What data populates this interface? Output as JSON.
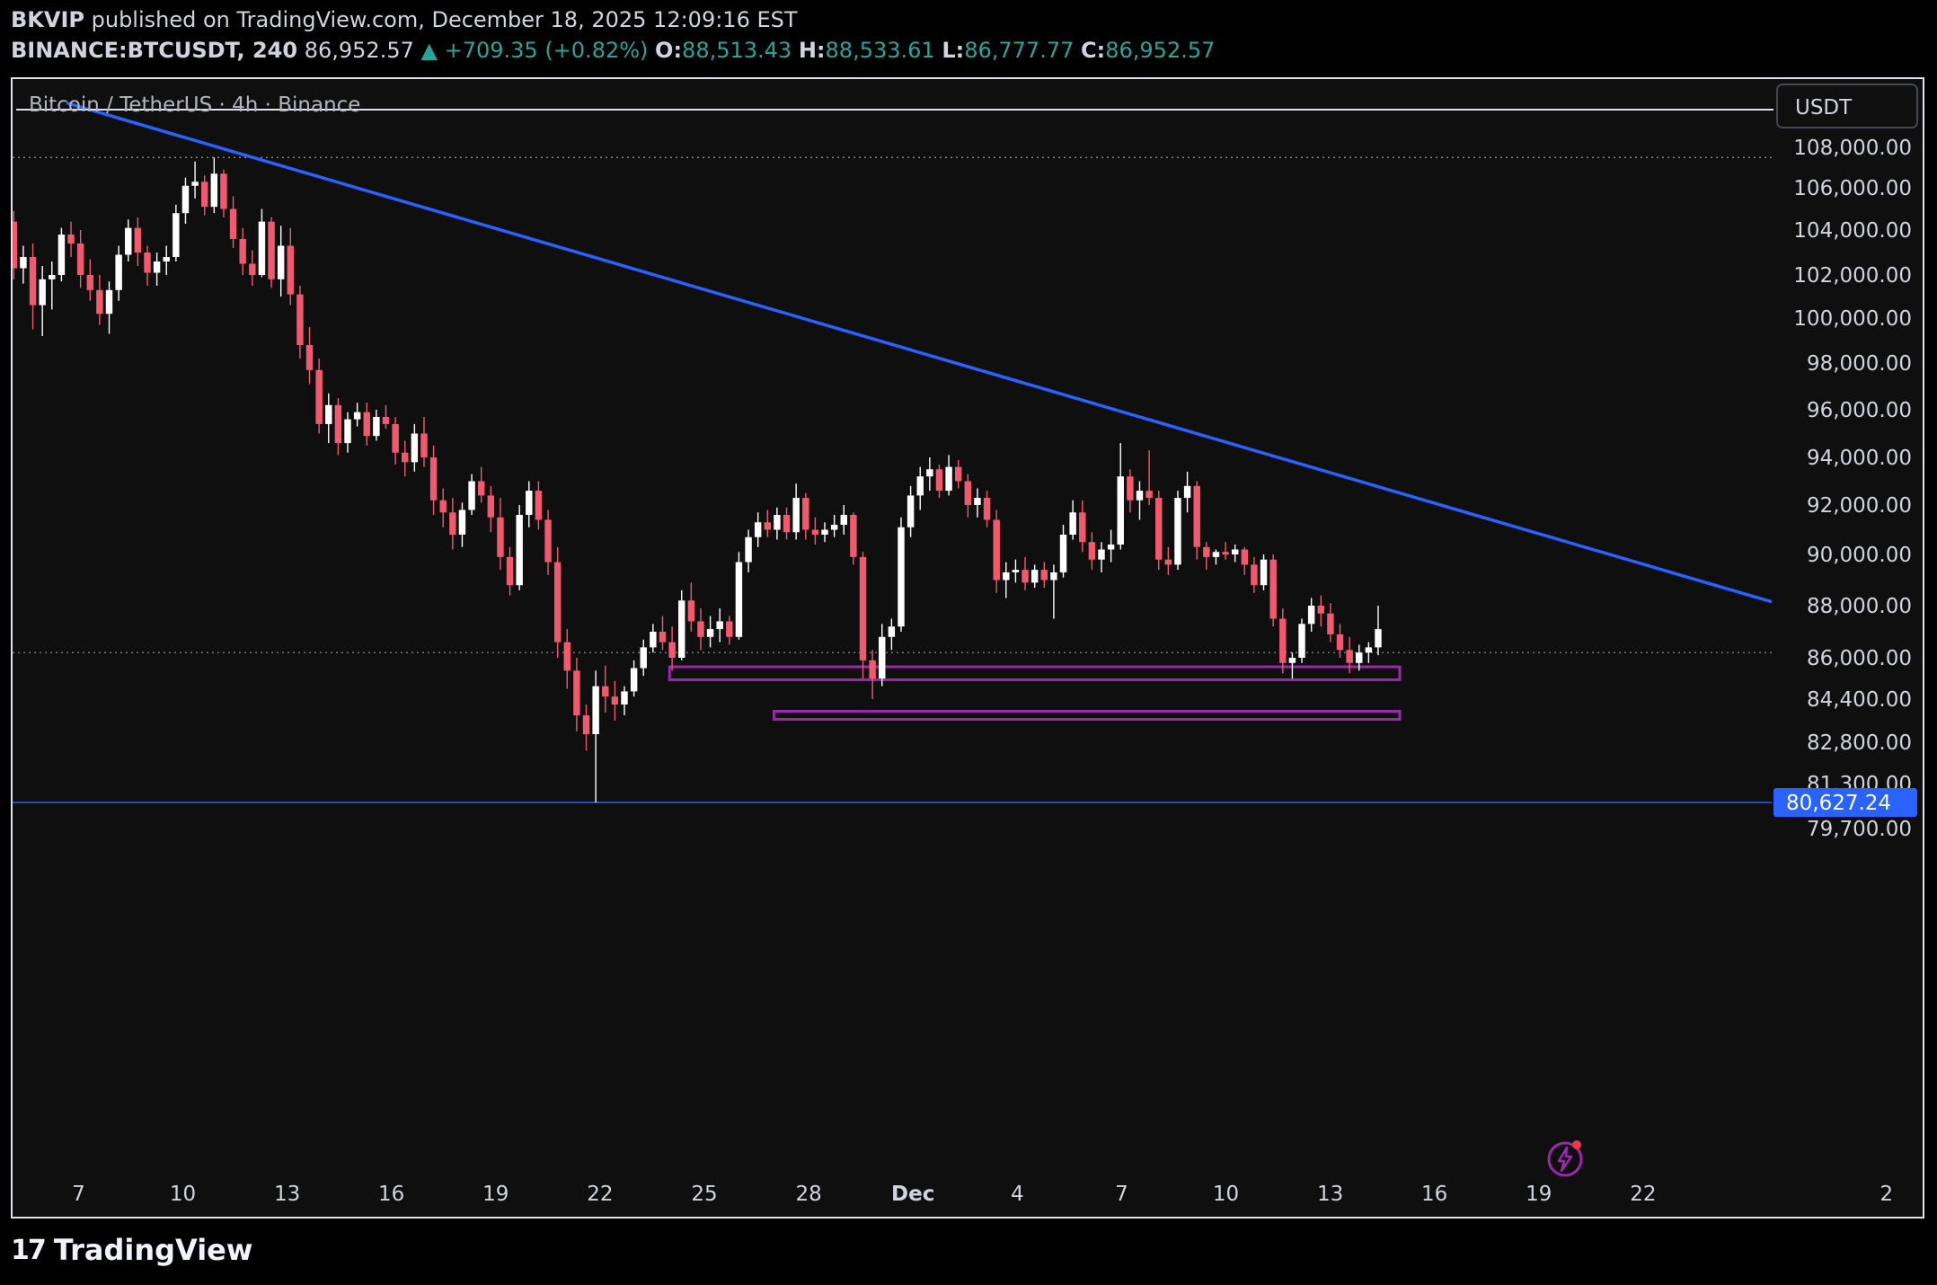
{
  "header": {
    "publisher": "BKVIP",
    "published_text": "published on TradingView.com, December 18, 2025 12:09:16 EST",
    "symbol": "BINANCE:BTCUSDT, 240",
    "last": "86,952.57",
    "change": "▲ +709.35 (+0.82%)",
    "o_label": "O:",
    "o_value": "88,513.43",
    "h_label": "H:",
    "h_value": "88,533.61",
    "l_label": "L:",
    "l_value": "86,777.77",
    "c_label": "C:",
    "c_value": "86,952.57"
  },
  "footer": {
    "brand": "TradingView"
  },
  "colors": {
    "bull": "#ffffff",
    "bear": "#f05a6e",
    "trendline": "#2962ff",
    "zone": "#9c27b0",
    "price_tag": "#2962ff",
    "up_text": "#26a69a"
  },
  "chart_data": {
    "type": "candlestick",
    "title": "Bitcoin / TetherUS · 4h · Binance",
    "currency": "USDT",
    "y_ticks": [
      "108,000.00",
      "106,000.00",
      "104,000.00",
      "102,000.00",
      "100,000.00",
      "98,000.00",
      "96,000.00",
      "94,000.00",
      "92,000.00",
      "90,000.00",
      "88,000.00",
      "86,000.00",
      "84,400.00",
      "82,800.00",
      "81,300.00",
      "79,700.00"
    ],
    "x_ticks": [
      "7",
      "10",
      "13",
      "16",
      "19",
      "22",
      "25",
      "28",
      "Dec",
      "4",
      "7",
      "10",
      "13",
      "16",
      "19",
      "22",
      "2"
    ],
    "x_range": [
      "Nov 5, 2025",
      "Jan 2, 2026"
    ],
    "price_tag": "80,627.24",
    "horizontal_lines": [
      {
        "price": 107500,
        "style": "dotted"
      },
      {
        "price": 86200,
        "style": "dotted"
      },
      {
        "price": 80627.24,
        "style": "solid",
        "color": "#2962ff"
      }
    ],
    "trendline": {
      "from": {
        "date": "Nov 5",
        "price": 110200
      },
      "to": {
        "date": "Jan 2",
        "price": 88150
      }
    },
    "zones": [
      {
        "from": "Nov 24",
        "to": "Dec 19",
        "low": 85150,
        "high": 85650
      },
      {
        "from": "Dec 1",
        "to": "Dec 19",
        "low": 83650,
        "high": 83950
      }
    ],
    "candles": [
      [
        104400,
        104900,
        101800,
        102300
      ],
      [
        102300,
        103300,
        101600,
        102800
      ],
      [
        102800,
        103400,
        99500,
        100600
      ],
      [
        100600,
        102400,
        99200,
        101800
      ],
      [
        101800,
        102600,
        100400,
        102000
      ],
      [
        102000,
        104100,
        101700,
        103800
      ],
      [
        103800,
        104400,
        102800,
        103400
      ],
      [
        103400,
        104000,
        101400,
        102000
      ],
      [
        102000,
        102700,
        100800,
        101300
      ],
      [
        101300,
        102000,
        99700,
        100200
      ],
      [
        100200,
        101700,
        99300,
        101300
      ],
      [
        101300,
        103300,
        100800,
        102900
      ],
      [
        102900,
        104500,
        102600,
        104100
      ],
      [
        104100,
        104600,
        102400,
        103000
      ],
      [
        103000,
        103300,
        101500,
        102100
      ],
      [
        102100,
        103000,
        101500,
        102600
      ],
      [
        102600,
        103300,
        102000,
        102800
      ],
      [
        102800,
        105200,
        102600,
        104800
      ],
      [
        104800,
        106500,
        104300,
        106100
      ],
      [
        106100,
        107300,
        105500,
        106300
      ],
      [
        106300,
        106600,
        104700,
        105100
      ],
      [
        105100,
        107500,
        104800,
        106700
      ],
      [
        106700,
        106900,
        104600,
        105000
      ],
      [
        105000,
        105600,
        103200,
        103600
      ],
      [
        103600,
        104100,
        102000,
        102500
      ],
      [
        102500,
        103100,
        101500,
        102000
      ],
      [
        102000,
        105000,
        101900,
        104400
      ],
      [
        104400,
        104600,
        101400,
        101800
      ],
      [
        101800,
        104200,
        101000,
        103300
      ],
      [
        103300,
        104100,
        100600,
        101100
      ],
      [
        101100,
        101500,
        98200,
        98800
      ],
      [
        98800,
        99600,
        97100,
        97700
      ],
      [
        97700,
        98200,
        95000,
        95400
      ],
      [
        95400,
        96700,
        94600,
        96200
      ],
      [
        96200,
        96500,
        94100,
        94600
      ],
      [
        94600,
        95900,
        94200,
        95600
      ],
      [
        95600,
        96300,
        95300,
        95900
      ],
      [
        95900,
        96300,
        94500,
        94900
      ],
      [
        94900,
        96000,
        94700,
        95700
      ],
      [
        95700,
        96200,
        95200,
        95400
      ],
      [
        95400,
        95700,
        93700,
        94200
      ],
      [
        94200,
        94700,
        93200,
        93800
      ],
      [
        93800,
        95400,
        93400,
        95000
      ],
      [
        95000,
        95700,
        93600,
        94000
      ],
      [
        94000,
        94500,
        91600,
        92200
      ],
      [
        92200,
        92700,
        91100,
        91700
      ],
      [
        91700,
        92300,
        90200,
        90800
      ],
      [
        90800,
        92100,
        90300,
        91800
      ],
      [
        91800,
        93300,
        91600,
        93000
      ],
      [
        93000,
        93600,
        92100,
        92400
      ],
      [
        92400,
        92800,
        90900,
        91500
      ],
      [
        91500,
        92300,
        89400,
        89900
      ],
      [
        89900,
        90300,
        88400,
        88800
      ],
      [
        88800,
        92000,
        88600,
        91600
      ],
      [
        91600,
        93000,
        91100,
        92600
      ],
      [
        92600,
        93000,
        91000,
        91400
      ],
      [
        91400,
        91800,
        89200,
        89700
      ],
      [
        89700,
        90300,
        86000,
        86600
      ],
      [
        86600,
        87100,
        84800,
        85500
      ],
      [
        85500,
        86000,
        83200,
        83800
      ],
      [
        83800,
        84200,
        82500,
        83100
      ],
      [
        83100,
        85500,
        80627,
        84900
      ],
      [
        84900,
        85700,
        83900,
        84500
      ],
      [
        84500,
        85100,
        83600,
        84200
      ],
      [
        84200,
        84900,
        83800,
        84700
      ],
      [
        84700,
        85900,
        84500,
        85600
      ],
      [
        85600,
        86700,
        85300,
        86400
      ],
      [
        86400,
        87300,
        86200,
        87000
      ],
      [
        87000,
        87600,
        86300,
        86600
      ],
      [
        86600,
        87200,
        85500,
        86000
      ],
      [
        86000,
        88600,
        85900,
        88200
      ],
      [
        88200,
        88900,
        87000,
        87400
      ],
      [
        87400,
        87900,
        86300,
        86800
      ],
      [
        86800,
        87600,
        86400,
        87100
      ],
      [
        87100,
        87900,
        86600,
        87400
      ],
      [
        87400,
        87600,
        86500,
        86800
      ],
      [
        86800,
        90100,
        86700,
        89700
      ],
      [
        89700,
        91000,
        89300,
        90700
      ],
      [
        90700,
        91700,
        90300,
        91300
      ],
      [
        91300,
        91800,
        90700,
        91000
      ],
      [
        91000,
        91900,
        90600,
        91600
      ],
      [
        91600,
        91900,
        90600,
        90900
      ],
      [
        90900,
        92900,
        90600,
        92300
      ],
      [
        92300,
        92500,
        90600,
        91000
      ],
      [
        91000,
        91500,
        90400,
        90800
      ],
      [
        90800,
        91300,
        90500,
        91000
      ],
      [
        91000,
        91600,
        90700,
        91200
      ],
      [
        91200,
        92000,
        90800,
        91600
      ],
      [
        91600,
        91700,
        89600,
        89900
      ],
      [
        89900,
        90100,
        85200,
        85900
      ],
      [
        85900,
        86300,
        84400,
        85200
      ],
      [
        85200,
        87300,
        84900,
        86800
      ],
      [
        86800,
        87500,
        86300,
        87200
      ],
      [
        87200,
        91500,
        87000,
        91100
      ],
      [
        91100,
        92800,
        90700,
        92400
      ],
      [
        92400,
        93600,
        91800,
        93200
      ],
      [
        93200,
        94000,
        92600,
        93500
      ],
      [
        93500,
        93700,
        92300,
        92600
      ],
      [
        92600,
        94100,
        92400,
        93600
      ],
      [
        93600,
        93900,
        92700,
        93000
      ],
      [
        93000,
        93300,
        91500,
        92000
      ],
      [
        92000,
        92700,
        91500,
        92300
      ],
      [
        92300,
        92600,
        91100,
        91400
      ],
      [
        91400,
        91800,
        88500,
        89000
      ],
      [
        89000,
        89700,
        88300,
        89300
      ],
      [
        89300,
        89800,
        88900,
        89400
      ],
      [
        89400,
        89900,
        88600,
        88900
      ],
      [
        88900,
        89600,
        88700,
        89400
      ],
      [
        89400,
        89700,
        88700,
        89000
      ],
      [
        89000,
        89600,
        87500,
        89300
      ],
      [
        89300,
        91200,
        89100,
        90800
      ],
      [
        90800,
        92200,
        90600,
        91700
      ],
      [
        91700,
        92200,
        90100,
        90500
      ],
      [
        90500,
        90900,
        89400,
        89800
      ],
      [
        89800,
        90500,
        89300,
        90200
      ],
      [
        90200,
        91000,
        89700,
        90400
      ],
      [
        90400,
        94600,
        90200,
        93200
      ],
      [
        93200,
        93500,
        91700,
        92200
      ],
      [
        92200,
        93000,
        91400,
        92600
      ],
      [
        92600,
        94300,
        92000,
        92300
      ],
      [
        92300,
        92600,
        89400,
        89800
      ],
      [
        89800,
        90300,
        89200,
        89600
      ],
      [
        89600,
        92600,
        89400,
        92300
      ],
      [
        92300,
        93400,
        91700,
        92800
      ],
      [
        92800,
        93000,
        89800,
        90300
      ],
      [
        90300,
        90500,
        89400,
        89900
      ],
      [
        89900,
        90200,
        89600,
        90100
      ],
      [
        90100,
        90500,
        89800,
        90000
      ],
      [
        90000,
        90400,
        89700,
        90200
      ],
      [
        90200,
        90300,
        89200,
        89600
      ],
      [
        89600,
        89900,
        88500,
        88800
      ],
      [
        88800,
        90000,
        88600,
        89800
      ],
      [
        89800,
        90000,
        87200,
        87500
      ],
      [
        87500,
        87900,
        85400,
        85800
      ],
      [
        85800,
        86200,
        85200,
        86000
      ],
      [
        86000,
        87500,
        85800,
        87300
      ],
      [
        87300,
        88300,
        87000,
        88000
      ],
      [
        88000,
        88400,
        87200,
        87700
      ],
      [
        87700,
        88100,
        86600,
        86900
      ],
      [
        86900,
        87300,
        86000,
        86300
      ],
      [
        86300,
        86800,
        85400,
        85800
      ],
      [
        85800,
        86500,
        85500,
        86200
      ],
      [
        86200,
        86600,
        85800,
        86400
      ],
      [
        86400,
        88000,
        86100,
        87100
      ]
    ]
  }
}
